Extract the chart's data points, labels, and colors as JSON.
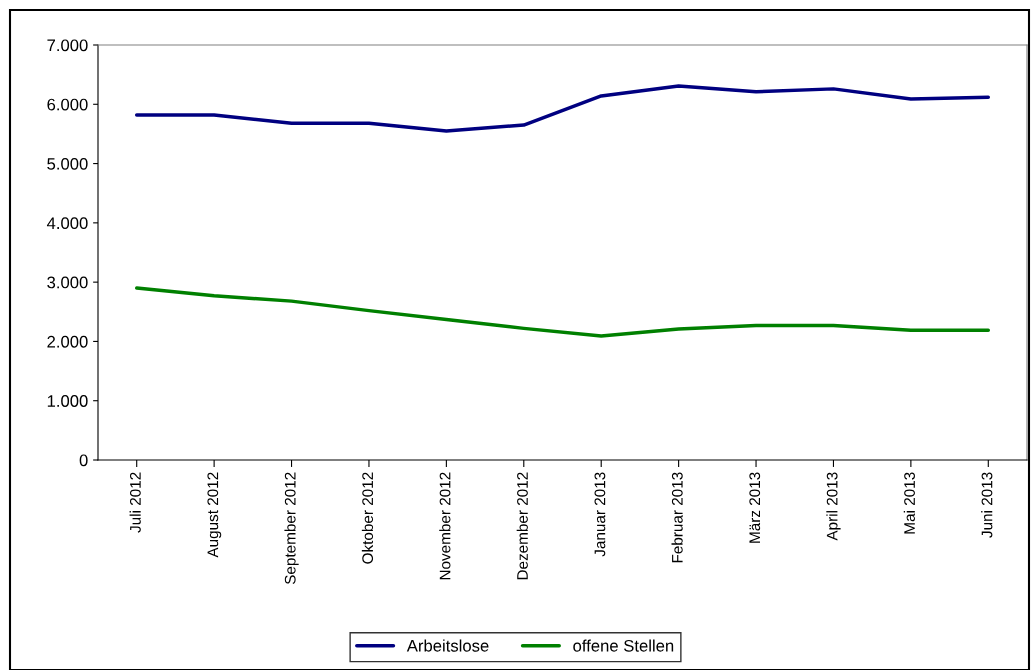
{
  "chart_data": {
    "type": "line",
    "categories": [
      "Juli 2012",
      "August 2012",
      "September 2012",
      "Oktober 2012",
      "November 2012",
      "Dezember 2012",
      "Januar 2013",
      "Februar 2013",
      "März 2013",
      "April 2013",
      "Mai 2013",
      "Juni 2013"
    ],
    "series": [
      {
        "name": "Arbeitslose",
        "color": "#000080",
        "values": [
          5820,
          5820,
          5680,
          5680,
          5550,
          5650,
          6140,
          6310,
          6210,
          6260,
          6090,
          6120
        ]
      },
      {
        "name": "offene Stellen",
        "color": "#008000",
        "values": [
          2900,
          2770,
          2680,
          2520,
          2370,
          2220,
          2090,
          2210,
          2270,
          2270,
          2190,
          2190
        ]
      }
    ],
    "ylim": [
      0,
      7000
    ],
    "yticks": [
      {
        "value": 0,
        "label": "0"
      },
      {
        "value": 1000,
        "label": "1.000"
      },
      {
        "value": 2000,
        "label": "2.000"
      },
      {
        "value": 3000,
        "label": "3.000"
      },
      {
        "value": 4000,
        "label": "4.000"
      },
      {
        "value": 5000,
        "label": "5.000"
      },
      {
        "value": 6000,
        "label": "6.000"
      },
      {
        "value": 7000,
        "label": "7.000"
      }
    ],
    "grid": false,
    "legend": "bottom",
    "marker": "none",
    "line_style": "solid"
  }
}
